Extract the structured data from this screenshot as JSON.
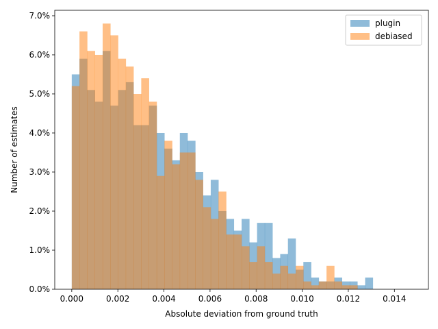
{
  "chart_data": {
    "type": "bar",
    "xlabel": "Absolute deviation from ground truth",
    "ylabel": "Number of estimates",
    "xlim": [
      -0.000738,
      0.015476
    ],
    "ylim": [
      0,
      7.14
    ],
    "x_ticks": [
      0.0,
      0.002,
      0.004,
      0.006,
      0.008,
      0.01,
      0.012,
      0.014
    ],
    "x_tick_labels": [
      "0.000",
      "0.002",
      "0.004",
      "0.006",
      "0.008",
      "0.010",
      "0.012",
      "0.014"
    ],
    "y_ticks": [
      0,
      1,
      2,
      3,
      4,
      5,
      6,
      7
    ],
    "y_tick_labels": [
      "0.0%",
      "1.0%",
      "2.0%",
      "3.0%",
      "4.0%",
      "5.0%",
      "6.0%",
      "7.0%"
    ],
    "legend_position": "top-right",
    "grid": false,
    "bin_start": 0.0,
    "bin_width": 0.000335,
    "series": [
      {
        "name": "plugin",
        "color": "#1f77b4",
        "alpha": 0.5,
        "values": [
          5.5,
          5.9,
          5.1,
          4.8,
          6.1,
          4.7,
          5.1,
          5.3,
          4.2,
          4.2,
          4.7,
          4.0,
          3.6,
          3.3,
          4.0,
          3.8,
          3.0,
          2.4,
          2.8,
          2.0,
          1.8,
          1.5,
          1.8,
          1.2,
          1.7,
          1.7,
          0.8,
          0.9,
          1.3,
          0.5,
          0.7,
          0.3,
          0.2,
          0.2,
          0.3,
          0.2,
          0.2,
          0.1,
          0.3
        ]
      },
      {
        "name": "debiased",
        "color": "#ff7f0e",
        "alpha": 0.5,
        "values": [
          5.2,
          6.6,
          6.1,
          6.0,
          6.8,
          6.5,
          5.9,
          5.7,
          5.0,
          5.4,
          4.8,
          2.9,
          3.8,
          3.2,
          3.5,
          3.5,
          2.8,
          2.1,
          1.8,
          2.5,
          1.4,
          1.4,
          1.1,
          0.7,
          1.1,
          0.7,
          0.4,
          0.6,
          0.4,
          0.6,
          0.2,
          0.1,
          0.2,
          0.6,
          0.2,
          0.1,
          0.1,
          0.0,
          0.0
        ]
      }
    ]
  }
}
